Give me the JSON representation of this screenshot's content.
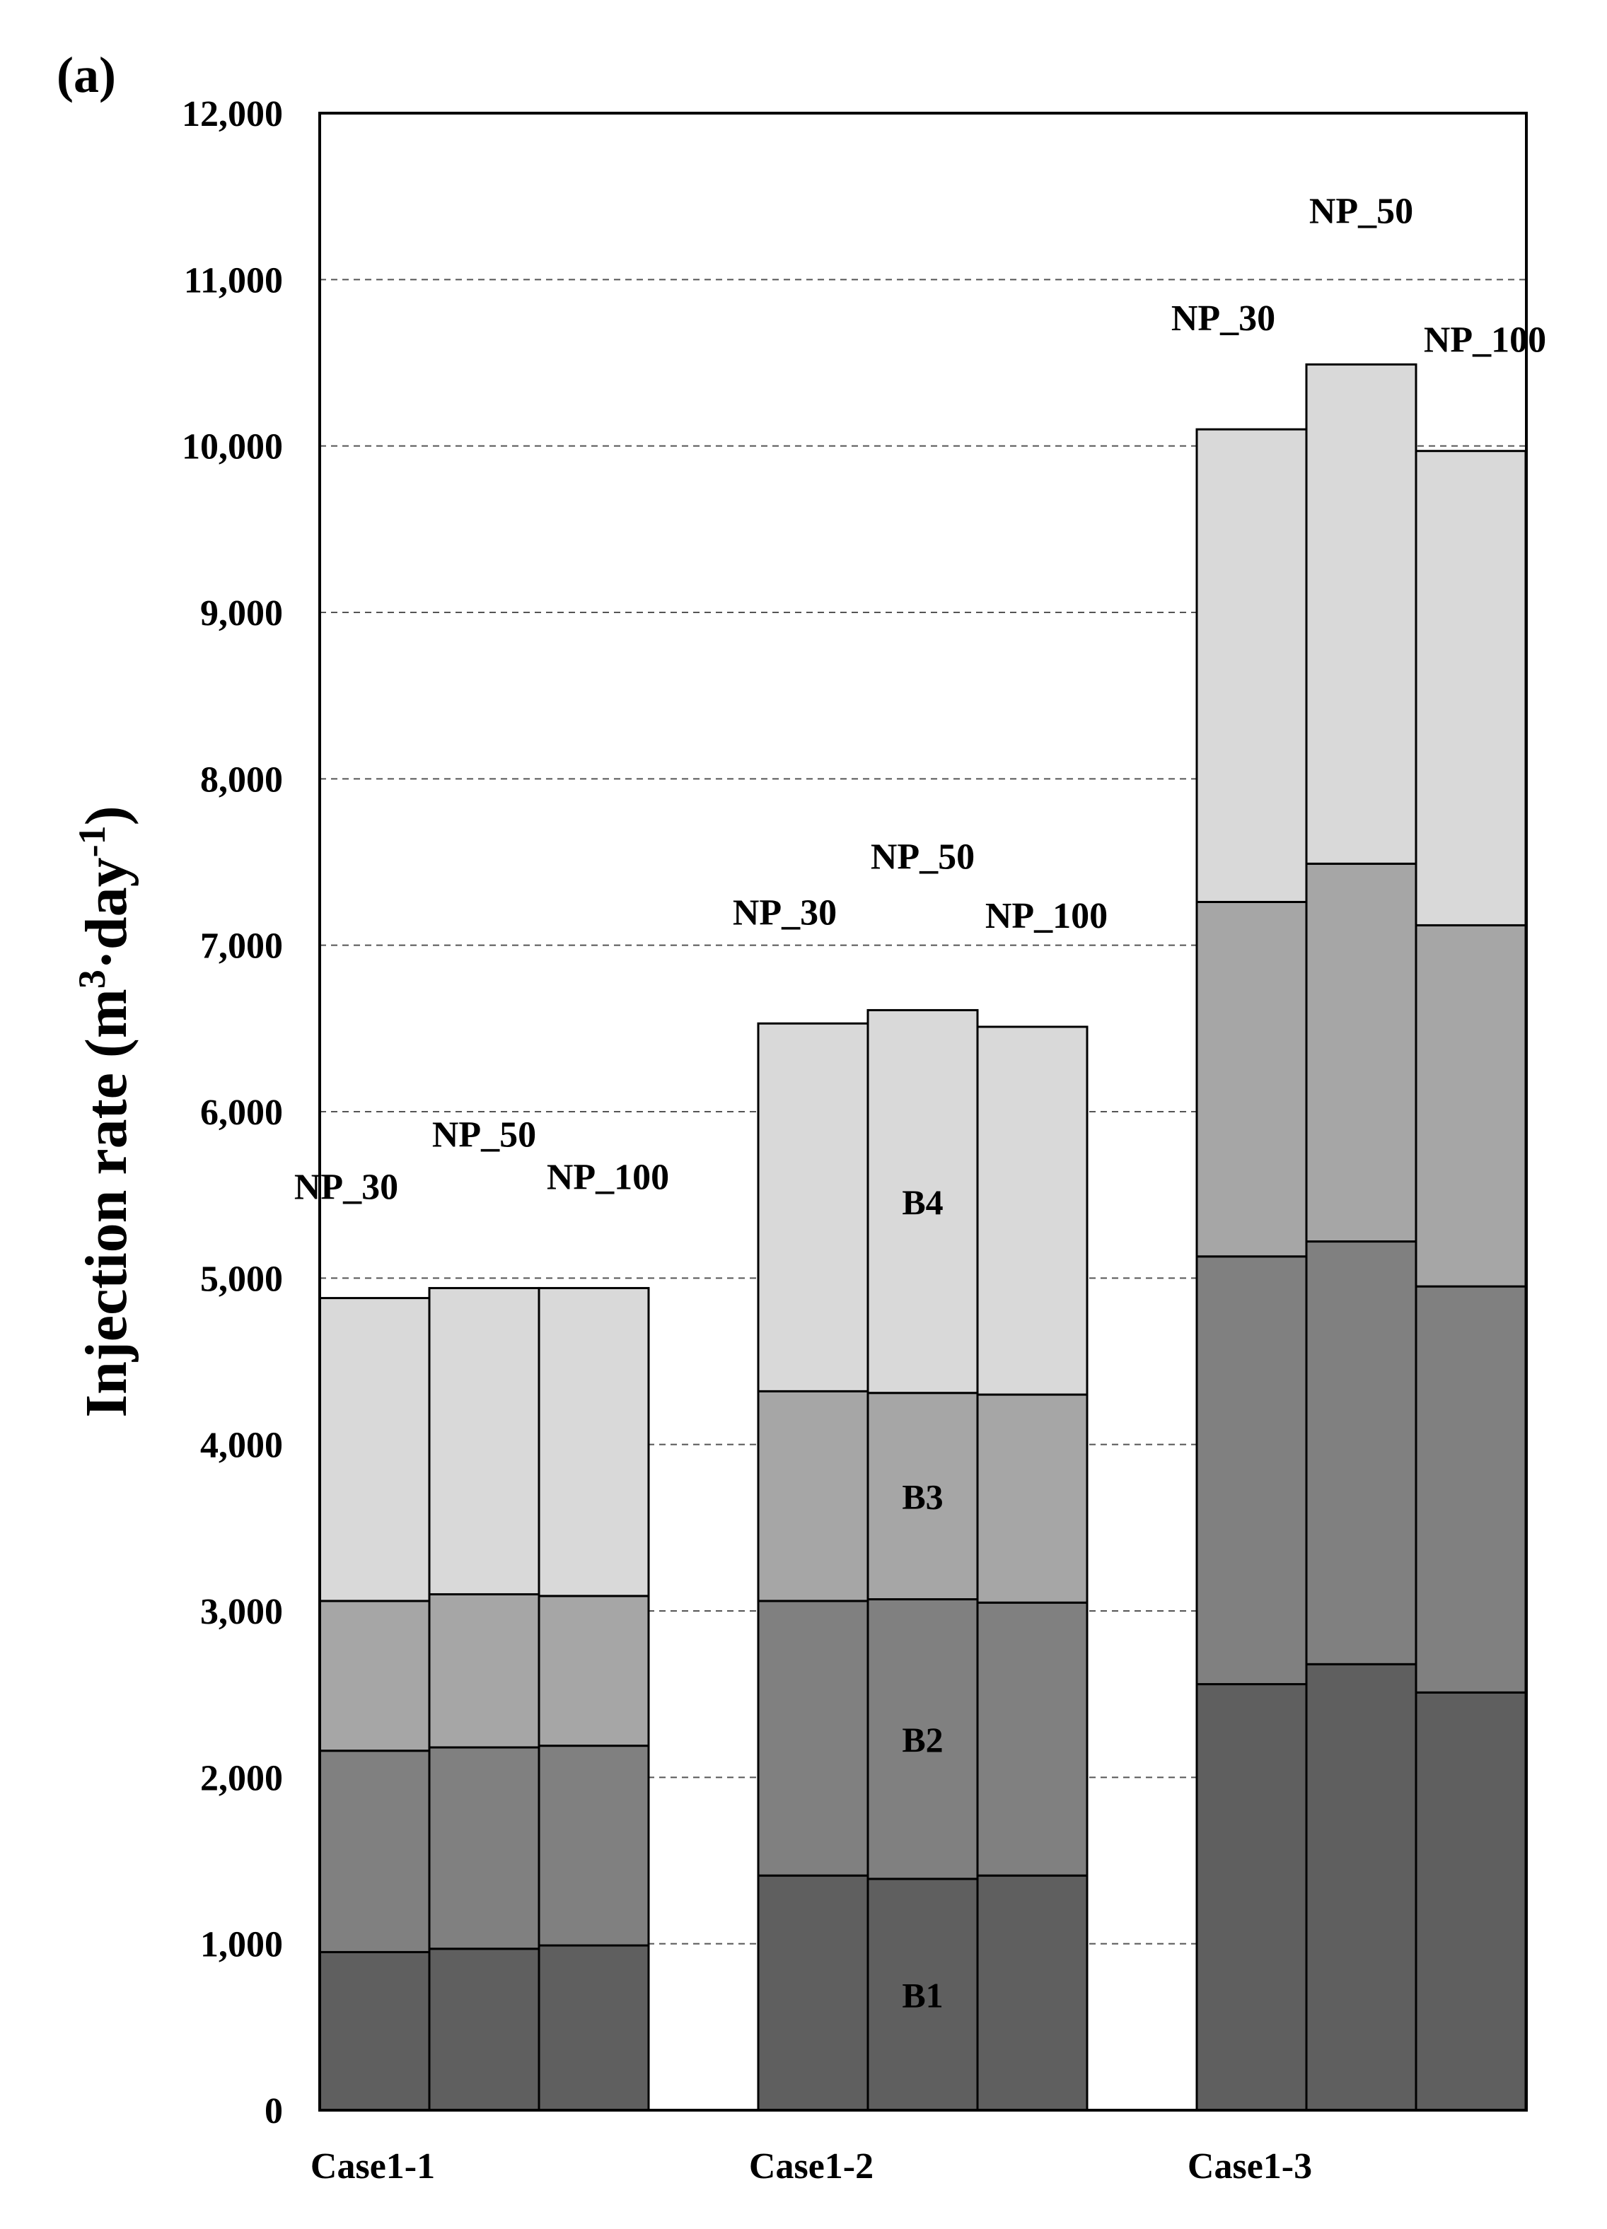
{
  "panel_label": "(a)",
  "chart_data": {
    "type": "bar",
    "stacked": true,
    "ylabel": "Injection rate (m³·day⁻¹)",
    "ylabel_parts": {
      "main": "Injection rate (m",
      "sup1": "3",
      "mid": "·day",
      "sup2": "-1",
      "end": ")"
    },
    "ylim": [
      0,
      12000
    ],
    "yticks": [
      0,
      1000,
      2000,
      3000,
      4000,
      5000,
      6000,
      7000,
      8000,
      9000,
      10000,
      11000,
      12000
    ],
    "ytick_labels": [
      "0",
      "1,000",
      "2,000",
      "3,000",
      "4,000",
      "5,000",
      "6,000",
      "7,000",
      "8,000",
      "9,000",
      "10,000",
      "11,000",
      "12,000"
    ],
    "grid": "horizontal-dashed",
    "groups": [
      "Case1-1",
      "Case1-2",
      "Case1-3"
    ],
    "bar_labels": [
      "NP_30",
      "NP_50",
      "NP_100"
    ],
    "segment_names": [
      "B1",
      "B2",
      "B3",
      "B4"
    ],
    "segment_labels_shown_in": "Case1-2 / NP_50",
    "colors": {
      "B1": "#5f5f5f",
      "B2": "#808080",
      "B3": "#a6a6a6",
      "B4": "#d9d9d9"
    },
    "data": [
      [
        [
          950,
          1210,
          900,
          1820
        ],
        [
          970,
          1210,
          920,
          1840
        ],
        [
          990,
          1200,
          900,
          1850
        ]
      ],
      [
        [
          1410,
          1650,
          1260,
          2210
        ],
        [
          1390,
          1680,
          1240,
          2300
        ],
        [
          1410,
          1640,
          1250,
          2210
        ]
      ],
      [
        [
          2560,
          2570,
          2130,
          2840
        ],
        [
          2680,
          2540,
          2270,
          3000
        ],
        [
          2510,
          2440,
          2170,
          2850
        ]
      ]
    ]
  }
}
